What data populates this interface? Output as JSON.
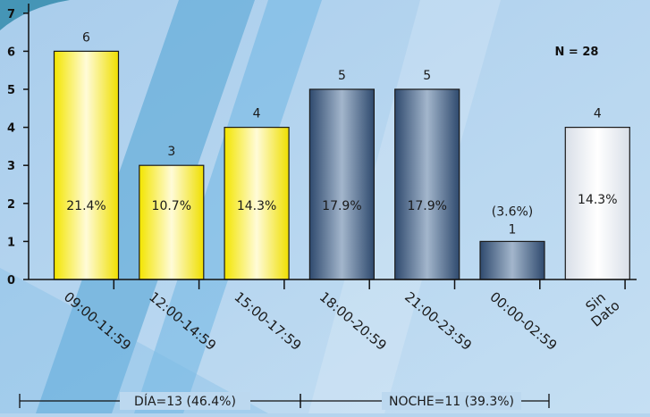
{
  "chart_data": {
    "type": "bar",
    "categories": [
      "09:00-11:59",
      "12:00-14:59",
      "15:00-17:59",
      "18:00-20:59",
      "21:00-23:59",
      "00:00-02:59",
      "Sin Dato"
    ],
    "values": [
      6,
      3,
      4,
      5,
      5,
      1,
      4
    ],
    "percent_labels": [
      "21.4%",
      "10.7%",
      "14.3%",
      "17.9%",
      "17.9%",
      "(3.6%)",
      "14.3%"
    ],
    "bar_groups": [
      "dia",
      "dia",
      "dia",
      "noche",
      "noche",
      "noche",
      "sin_dato"
    ],
    "ylim": [
      0,
      7
    ],
    "yticks": [
      0,
      1,
      2,
      3,
      4,
      5,
      6,
      7
    ],
    "annotation": "N = 28",
    "groups": [
      {
        "label": "DÍA=13 (46.4%)",
        "from": 0,
        "to": 2
      },
      {
        "label": "NOCHE=11 (39.3%)",
        "from": 3,
        "to": 5
      }
    ],
    "colors": {
      "dia": "#f2e600",
      "noche": "#3f5a7e",
      "sin_dato": "#e6eaf0",
      "background": "#b5d4ee"
    },
    "grid": false,
    "legend": "none"
  }
}
